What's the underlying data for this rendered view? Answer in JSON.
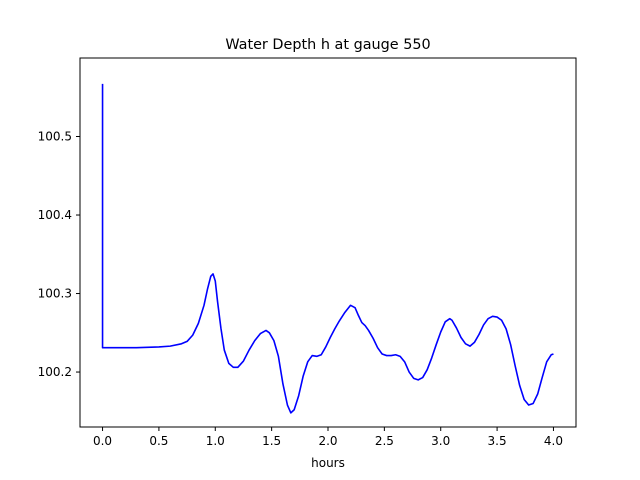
{
  "chart_data": {
    "type": "line",
    "title": "Water Depth h at gauge 550",
    "xlabel": "hours",
    "ylabel": "",
    "xlim": [
      -0.2,
      4.2
    ],
    "ylim": [
      100.13,
      100.6
    ],
    "grid": false,
    "x_ticks": [
      0.0,
      0.5,
      1.0,
      1.5,
      2.0,
      2.5,
      3.0,
      3.5,
      4.0
    ],
    "x_tick_labels": [
      "0.0",
      "0.5",
      "1.0",
      "1.5",
      "2.0",
      "2.5",
      "3.0",
      "3.5",
      "4.0"
    ],
    "y_ticks": [
      100.2,
      100.3,
      100.4,
      100.5
    ],
    "y_tick_labels": [
      "100.2",
      "100.3",
      "100.4",
      "100.5"
    ],
    "series": [
      {
        "color": "#0000ff",
        "x": [
          0.0,
          0.0,
          0.1,
          0.3,
          0.5,
          0.6,
          0.7,
          0.75,
          0.8,
          0.85,
          0.9,
          0.93,
          0.96,
          0.98,
          1.0,
          1.02,
          1.05,
          1.08,
          1.12,
          1.16,
          1.2,
          1.25,
          1.3,
          1.35,
          1.4,
          1.45,
          1.48,
          1.52,
          1.56,
          1.6,
          1.64,
          1.67,
          1.7,
          1.74,
          1.78,
          1.82,
          1.86,
          1.9,
          1.94,
          1.98,
          2.02,
          2.06,
          2.1,
          2.15,
          2.2,
          2.24,
          2.27,
          2.3,
          2.33,
          2.36,
          2.4,
          2.44,
          2.48,
          2.52,
          2.56,
          2.6,
          2.64,
          2.68,
          2.72,
          2.76,
          2.8,
          2.84,
          2.88,
          2.92,
          2.96,
          3.0,
          3.04,
          3.08,
          3.1,
          3.14,
          3.18,
          3.22,
          3.26,
          3.3,
          3.34,
          3.38,
          3.42,
          3.46,
          3.5,
          3.54,
          3.58,
          3.62,
          3.66,
          3.7,
          3.74,
          3.78,
          3.82,
          3.86,
          3.9,
          3.94,
          3.98,
          4.0
        ],
        "y": [
          100.567,
          100.231,
          100.231,
          100.231,
          100.232,
          100.233,
          100.236,
          100.239,
          100.247,
          100.262,
          100.285,
          100.305,
          100.322,
          100.325,
          100.316,
          100.29,
          100.256,
          100.228,
          100.211,
          100.206,
          100.206,
          100.214,
          100.228,
          100.24,
          100.249,
          100.253,
          100.25,
          100.24,
          100.22,
          100.185,
          100.158,
          100.148,
          100.152,
          100.17,
          100.195,
          100.213,
          100.221,
          100.22,
          100.222,
          100.232,
          100.244,
          100.255,
          100.265,
          100.276,
          100.285,
          100.282,
          100.272,
          100.263,
          100.259,
          100.253,
          100.243,
          100.231,
          100.223,
          100.221,
          100.221,
          100.222,
          100.22,
          100.213,
          100.2,
          100.192,
          100.19,
          100.193,
          100.203,
          100.218,
          100.235,
          100.251,
          100.264,
          100.268,
          100.266,
          100.256,
          100.244,
          100.236,
          100.233,
          100.238,
          100.248,
          100.26,
          100.268,
          100.271,
          100.27,
          100.266,
          100.255,
          100.235,
          100.208,
          100.183,
          100.165,
          100.158,
          100.16,
          100.172,
          100.193,
          100.213,
          100.222,
          100.223
        ]
      }
    ]
  }
}
